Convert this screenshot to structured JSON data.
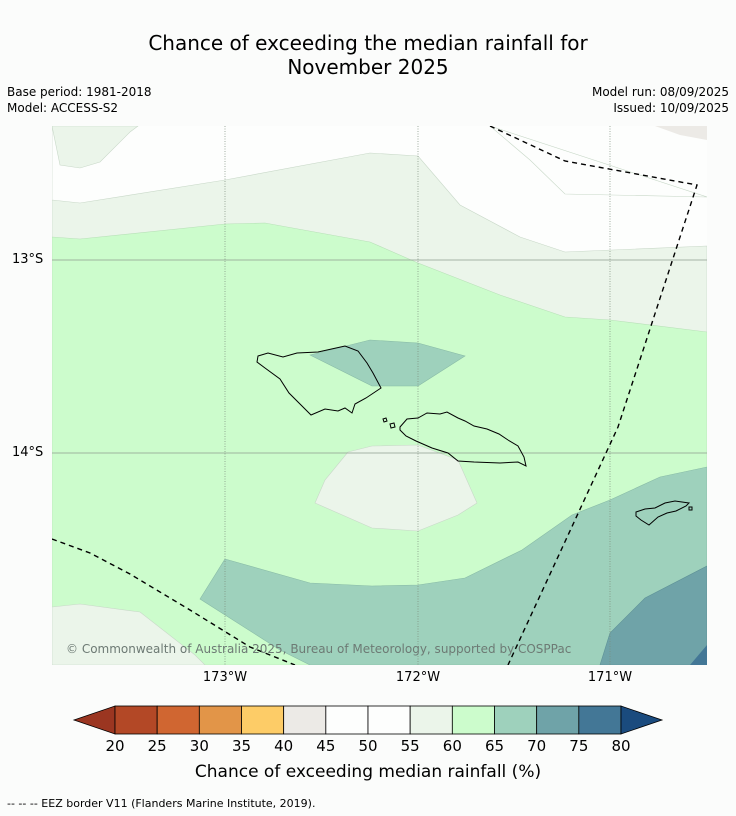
{
  "title_line1": "Chance of exceeding the median rainfall for",
  "title_line2": "November 2025",
  "base_period": "Base period: 1981-2018",
  "model": "Model: ACCESS-S2",
  "model_run": "Model run: 08/09/2025",
  "issued": "Issued: 10/09/2025",
  "lat_labels": [
    "13°S",
    "14°S"
  ],
  "lon_labels": [
    "173°W",
    "172°W",
    "171°W"
  ],
  "credit": "© Commonwealth of Australia 2025, Bureau of Meteorology, supported by COSPPac",
  "colorbar": {
    "ticks": [
      "20",
      "25",
      "30",
      "35",
      "40",
      "45",
      "50",
      "55",
      "60",
      "65",
      "70",
      "75",
      "80"
    ],
    "colors": [
      "#b34826",
      "#d06631",
      "#e29548",
      "#fdcc67",
      "#eceae6",
      "#fdfefd",
      "#fdfefd",
      "#ebf5ea",
      "#ccfccc",
      "#9ed1bc",
      "#6fa3a8",
      "#437796"
    ],
    "under_color": "#9b3621",
    "over_color": "#1a4b7e",
    "label": "Chance of exceeding median rainfall (%)"
  },
  "footnote": "--  --  -- EEZ border V11 (Flanders Marine Institute, 2019)."
}
